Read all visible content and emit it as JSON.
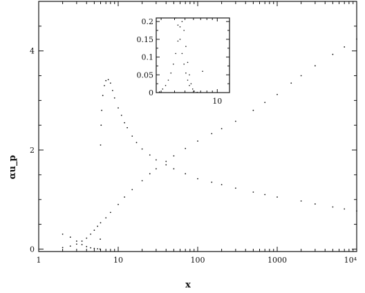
{
  "chart_data": [
    {
      "id": "main",
      "type": "scatter",
      "title": "",
      "xlabel": "x",
      "ylabel": "αu_p",
      "x_scale": "log",
      "xlim": [
        1,
        10000
      ],
      "ylim": [
        -0.05,
        5.0
      ],
      "x_ticks": [
        1,
        10,
        100,
        1000,
        10000
      ],
      "x_tick_labels": [
        "1",
        "10",
        "100",
        "1000",
        "10⁴"
      ],
      "y_ticks": [
        0,
        2,
        4
      ],
      "y_tick_labels": [
        "0",
        "2",
        "4"
      ],
      "grid": false,
      "legend": "none",
      "series": [
        {
          "x": [
            2,
            2.5,
            3,
            3.5,
            4,
            4.5,
            5,
            5.5,
            5.9,
            5.95,
            6,
            6.1,
            6.2,
            6.4,
            6.7,
            7,
            7.5,
            8,
            8.5,
            9,
            10,
            11,
            12,
            13,
            15,
            17,
            20,
            25,
            30,
            40,
            50,
            70,
            100,
            150,
            200,
            300,
            500,
            700,
            1000,
            2000,
            3000,
            5000,
            7000,
            10000
          ],
          "y": [
            0.3,
            0.24,
            0.16,
            0.09,
            0.05,
            0.025,
            0.012,
            0.005,
            0.0,
            0.2,
            2.1,
            2.5,
            2.8,
            3.1,
            3.3,
            3.4,
            3.42,
            3.35,
            3.2,
            3.05,
            2.85,
            2.7,
            2.55,
            2.45,
            2.28,
            2.15,
            2.02,
            1.9,
            1.8,
            1.7,
            1.62,
            1.52,
            1.42,
            1.35,
            1.3,
            1.23,
            1.15,
            1.1,
            1.05,
            0.97,
            0.91,
            0.85,
            0.81,
            0.77
          ]
        },
        {
          "x": [
            2,
            2.5,
            3,
            3.5,
            4,
            4.5,
            5,
            5.5,
            6,
            7,
            8,
            10,
            12,
            15,
            20,
            25,
            30,
            40,
            50,
            70,
            100,
            150,
            200,
            300,
            500,
            700,
            1000,
            1500,
            2000,
            3000,
            5000,
            7000,
            10000
          ],
          "y": [
            0.03,
            0.06,
            0.1,
            0.16,
            0.22,
            0.3,
            0.38,
            0.46,
            0.53,
            0.63,
            0.74,
            0.9,
            1.05,
            1.2,
            1.38,
            1.52,
            1.62,
            1.77,
            1.88,
            2.03,
            2.18,
            2.33,
            2.43,
            2.58,
            2.8,
            2.96,
            3.12,
            3.35,
            3.5,
            3.7,
            3.93,
            4.08,
            4.24
          ]
        }
      ]
    },
    {
      "id": "inset",
      "type": "scatter",
      "title": "",
      "xlabel": "",
      "ylabel": "",
      "x_scale": "log",
      "xlim": [
        2.7,
        13
      ],
      "ylim": [
        0,
        0.21
      ],
      "x_ticks": [
        10
      ],
      "x_tick_labels": [
        "10"
      ],
      "y_ticks": [
        0,
        0.05,
        0.1,
        0.15,
        0.2
      ],
      "y_tick_labels": [
        "0",
        "0.05",
        "0.1",
        "0.15",
        "0.2"
      ],
      "grid": false,
      "legend": "none",
      "series": [
        {
          "x": [
            2.9,
            3.1,
            3.3,
            3.5,
            3.7,
            3.9,
            4.1,
            4.3,
            4.5,
            4.7,
            4.9,
            5.1,
            5.3,
            5.5,
            5.7,
            5.9,
            6.1,
            6.5,
            7.3
          ],
          "y": [
            0.002,
            0.01,
            0.02,
            0.035,
            0.055,
            0.08,
            0.11,
            0.145,
            0.185,
            0.2,
            0.175,
            0.13,
            0.085,
            0.05,
            0.025,
            0.01,
            0.004,
            0.001,
            0.06
          ]
        },
        {
          "x": [
            4.1,
            4.3,
            4.5,
            4.7,
            4.9,
            5.1,
            5.3,
            5.5
          ],
          "y": [
            0.21,
            0.19,
            0.15,
            0.11,
            0.08,
            0.055,
            0.035,
            0.02
          ]
        }
      ]
    }
  ]
}
